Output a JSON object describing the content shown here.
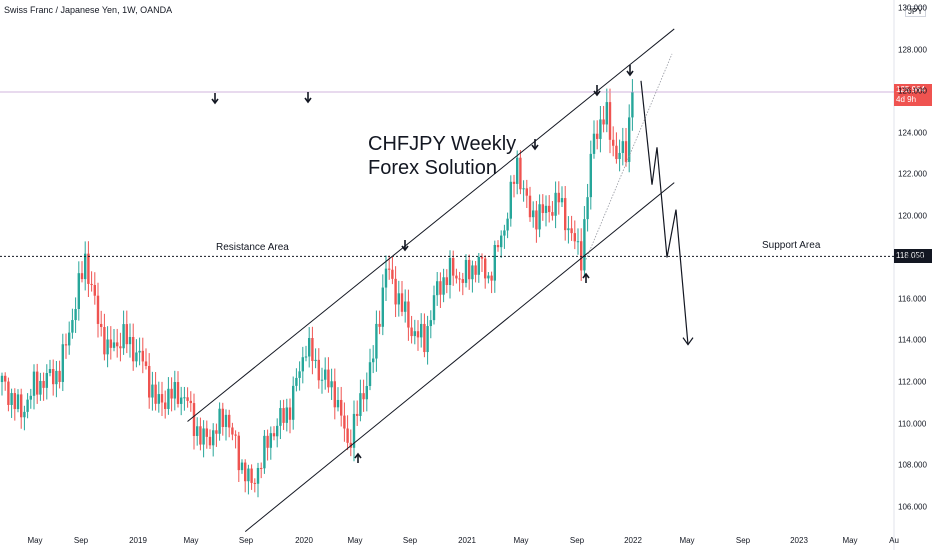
{
  "header": {
    "title": "Swiss Franc / Japanese Yen, 1W, OANDA",
    "currency_badge": "JPY"
  },
  "annotation": {
    "line1": "CHFJPY Weekly",
    "line2": "Forex Solution"
  },
  "labels": {
    "resistance": "Resistance Area",
    "support": "Support Area"
  },
  "price_tag": {
    "price": "125.964",
    "countdown": "4d 9h"
  },
  "support_tag": "118.050",
  "colors": {
    "up": "#26a69a",
    "down": "#ef5350",
    "accent_line": "#c39bd3",
    "text": "#131722"
  },
  "chart_data": {
    "type": "candlestick",
    "title": "Swiss Franc / Japanese Yen, 1W, OANDA",
    "y_ticks": [
      106.0,
      108.0,
      110.0,
      112.0,
      114.0,
      116.0,
      118.0,
      120.0,
      122.0,
      124.0,
      126.0,
      128.0,
      130.0
    ],
    "y_tick_labels": [
      "106.000",
      "108.000",
      "110.000",
      "112.000",
      "114.000",
      "116.000",
      "118.000",
      "120.000",
      "122.000",
      "124.000",
      "126.000",
      "128.000",
      "130.000"
    ],
    "x_ticks": [
      "May",
      "Sep",
      "2019",
      "May",
      "Sep",
      "2020",
      "May",
      "Sep",
      "2021",
      "May",
      "Sep",
      "2022",
      "May",
      "Sep",
      "2023",
      "May",
      "Au"
    ],
    "ylim": [
      105.0,
      130.5
    ],
    "current_price": 125.964,
    "support_level": 118.05,
    "keypoints": [
      [
        0,
        112.0
      ],
      [
        6,
        110.5
      ],
      [
        10,
        111.8
      ],
      [
        18,
        112.5
      ],
      [
        23,
        115.8
      ],
      [
        26,
        118.0
      ],
      [
        30,
        115.0
      ],
      [
        33,
        113.5
      ],
      [
        38,
        114.2
      ],
      [
        44,
        113.0
      ],
      [
        48,
        111.0
      ],
      [
        55,
        111.5
      ],
      [
        58,
        111.0
      ],
      [
        62,
        109.2
      ],
      [
        66,
        109.5
      ],
      [
        70,
        110.5
      ],
      [
        74,
        108.3
      ],
      [
        78,
        107.0
      ],
      [
        84,
        109.5
      ],
      [
        90,
        110.8
      ],
      [
        95,
        113.8
      ],
      [
        99,
        112.5
      ],
      [
        104,
        111.5
      ],
      [
        108,
        109.0
      ],
      [
        112,
        111.0
      ],
      [
        116,
        113.2
      ],
      [
        120,
        117.5
      ],
      [
        124,
        116.0
      ],
      [
        128,
        114.5
      ],
      [
        132,
        114.0
      ],
      [
        136,
        116.5
      ],
      [
        140,
        117.3
      ],
      [
        144,
        117.0
      ],
      [
        149,
        117.8
      ],
      [
        152,
        117.0
      ],
      [
        157,
        119.5
      ],
      [
        161,
        122.5
      ],
      [
        165,
        120.0
      ],
      [
        170,
        120.2
      ],
      [
        174,
        120.8
      ],
      [
        178,
        119.0
      ],
      [
        181,
        118.1
      ],
      [
        185,
        124.0
      ],
      [
        189,
        124.8
      ],
      [
        192,
        122.8
      ],
      [
        195,
        123.2
      ],
      [
        197,
        125.96
      ]
    ],
    "channel_upper": {
      "x": [
        2019.3,
        2022.25
      ],
      "y": [
        110.1,
        129.0
      ]
    },
    "channel_lower": {
      "x": [
        2019.65,
        2022.25
      ],
      "y": [
        104.8,
        121.6
      ]
    },
    "projection": [
      [
        126.5
      ],
      [
        121.5
      ],
      [
        123.3
      ],
      [
        118.0
      ],
      [
        120.3
      ],
      [
        113.8
      ]
    ]
  }
}
